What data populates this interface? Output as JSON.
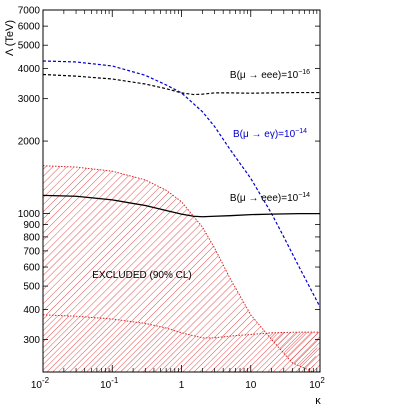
{
  "chart_data": {
    "type": "line",
    "title": "",
    "xlabel": "κ",
    "ylabel": "Λ (TeV)",
    "x_scale": "log",
    "y_scale": "log",
    "xlim": [
      0.01,
      100
    ],
    "ylim": [
      220,
      7000
    ],
    "grid": false,
    "x_ticks": [
      {
        "value": 0.01,
        "base": "10",
        "exp": "-2"
      },
      {
        "value": 0.1,
        "base": "10",
        "exp": "-1"
      },
      {
        "value": 1,
        "base": "1",
        "exp": ""
      },
      {
        "value": 10,
        "base": "10",
        "exp": ""
      },
      {
        "value": 100,
        "base": "10",
        "exp": "2"
      }
    ],
    "y_ticks": [
      {
        "value": 300,
        "label": "300"
      },
      {
        "value": 400,
        "label": "400"
      },
      {
        "value": 500,
        "label": "500"
      },
      {
        "value": 600,
        "label": "600"
      },
      {
        "value": 700,
        "label": "700"
      },
      {
        "value": 800,
        "label": "800"
      },
      {
        "value": 900,
        "label": "900"
      },
      {
        "value": 1000,
        "label": "1000"
      },
      {
        "value": 2000,
        "label": "2000"
      },
      {
        "value": 3000,
        "label": "3000"
      },
      {
        "value": 4000,
        "label": "4000"
      },
      {
        "value": 5000,
        "label": "5000"
      },
      {
        "value": 6000,
        "label": "6000"
      },
      {
        "value": 7000,
        "label": "7000"
      }
    ],
    "series": [
      {
        "label_pre": "B(μ → eee)=10",
        "label_exp": "−16",
        "color": "#000000",
        "style": "dashed",
        "x": [
          0.01,
          0.03,
          0.1,
          0.3,
          0.6,
          1,
          1.5,
          2,
          3,
          5,
          10,
          20,
          50,
          100
        ],
        "y": [
          3780,
          3720,
          3620,
          3450,
          3300,
          3170,
          3120,
          3130,
          3170,
          3170,
          3160,
          3170,
          3180,
          3180
        ]
      },
      {
        "label_pre": "B(μ → eγ)=10",
        "label_exp": "−14",
        "color": "#0000cc",
        "style": "dashed",
        "x": [
          0.01,
          0.03,
          0.1,
          0.3,
          0.6,
          1,
          2,
          3,
          5,
          10,
          20,
          30,
          50,
          100
        ],
        "y": [
          4300,
          4260,
          4100,
          3750,
          3420,
          3170,
          2650,
          2300,
          1850,
          1400,
          1000,
          800,
          600,
          410
        ]
      },
      {
        "label_pre": "B(μ → eee)=10",
        "label_exp": "−14",
        "color": "#000000",
        "style": "solid",
        "x": [
          0.01,
          0.03,
          0.1,
          0.3,
          0.6,
          1,
          1.5,
          2,
          3,
          5,
          10,
          20,
          50,
          100
        ],
        "y": [
          1190,
          1180,
          1140,
          1080,
          1030,
          995,
          975,
          970,
          975,
          980,
          990,
          995,
          1000,
          1000
        ]
      }
    ],
    "excluded_region": {
      "label": "EXCLUDED (90% CL)",
      "color": "#dd2222",
      "upper_boundary": {
        "x": [
          0.01,
          0.03,
          0.1,
          0.3,
          0.6,
          1,
          2,
          3,
          5,
          10,
          20,
          40,
          80
        ],
        "y": [
          1580,
          1560,
          1500,
          1380,
          1250,
          1120,
          880,
          720,
          540,
          380,
          300,
          240,
          220
        ]
      },
      "lower_boundary": {
        "x": [
          0.01,
          0.03,
          0.1,
          0.3,
          0.6,
          1,
          2,
          3,
          5,
          10,
          20,
          50,
          100
        ],
        "y": [
          380,
          375,
          365,
          350,
          335,
          320,
          305,
          305,
          310,
          315,
          320,
          322,
          322
        ]
      }
    }
  }
}
